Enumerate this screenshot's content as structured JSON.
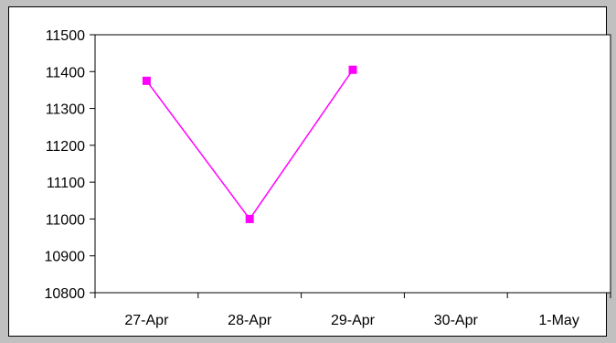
{
  "chart_data": {
    "type": "line",
    "title": "",
    "xlabel": "",
    "ylabel": "",
    "categories": [
      "27-Apr",
      "28-Apr",
      "29-Apr",
      "30-Apr",
      "1-May"
    ],
    "ylim": [
      10800,
      11500
    ],
    "yticks": [
      10800,
      10900,
      11000,
      11100,
      11200,
      11300,
      11400,
      11500
    ],
    "series": [
      {
        "values": [
          11375,
          11000,
          11405,
          null,
          null
        ],
        "color": "#ff00ff",
        "marker": "square"
      }
    ],
    "grid": false,
    "legend": "none"
  },
  "colors": {
    "background": "#c0c0c0",
    "plot_background": "#ffffff",
    "axis": "#000000"
  }
}
